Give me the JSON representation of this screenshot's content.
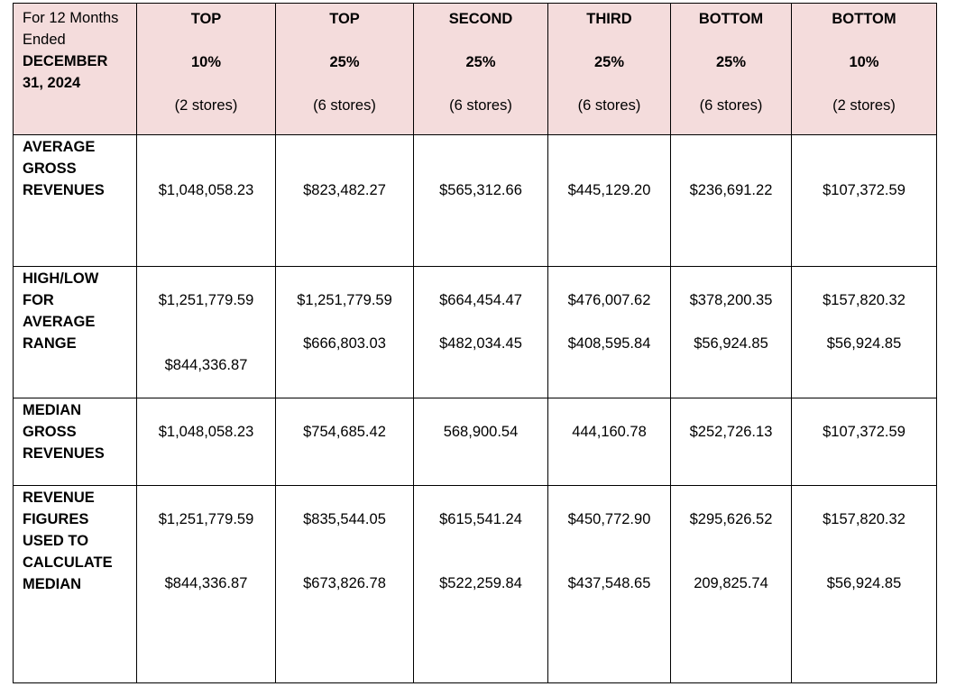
{
  "header": {
    "period_line1": "For 12 Months",
    "period_line2": "Ended",
    "period_line3": "DECEMBER",
    "period_line4": "31, 2024",
    "columns": [
      {
        "tier": "TOP",
        "pct": "10%",
        "stores": "(2 stores)"
      },
      {
        "tier": "TOP",
        "pct": "25%",
        "stores": "(6 stores)"
      },
      {
        "tier": "SECOND",
        "pct": "25%",
        "stores": "(6 stores)"
      },
      {
        "tier": "THIRD",
        "pct": "25%",
        "stores": "(6 stores)"
      },
      {
        "tier": "BOTTOM",
        "pct": "25%",
        "stores": "(6 stores)"
      },
      {
        "tier": "BOTTOM",
        "pct": "10%",
        "stores": "(2 stores)"
      }
    ]
  },
  "rows": {
    "avg": {
      "label": [
        "AVERAGE",
        "GROSS",
        "REVENUES"
      ],
      "values": [
        "$1,048,058.23",
        "$823,482.27",
        "$565,312.66",
        "$445,129.20",
        "$236,691.22",
        "$107,372.59"
      ]
    },
    "highlow": {
      "label": [
        "HIGH/LOW",
        "FOR",
        "AVERAGE",
        "RANGE"
      ],
      "high": [
        "$1,251,779.59",
        "$1,251,779.59",
        "$664,454.47",
        "$476,007.62",
        "$378,200.35",
        "$157,820.32"
      ],
      "low": [
        "$844,336.87",
        "$666,803.03",
        "$482,034.45",
        "$408,595.84",
        "$56,924.85",
        "$56,924.85"
      ]
    },
    "median": {
      "label": [
        "MEDIAN",
        "GROSS",
        "REVENUES"
      ],
      "values": [
        "$1,048,058.23",
        "$754,685.42",
        "568,900.54",
        "444,160.78",
        "$252,726.13",
        "$107,372.59"
      ]
    },
    "figures": {
      "label": [
        "REVENUE",
        "FIGURES",
        "USED TO",
        "CALCULATE",
        "MEDIAN"
      ],
      "first": [
        "$1,251,779.59",
        "$835,544.05",
        "$615,541.24",
        "$450,772.90",
        "$295,626.52",
        "$157,820.32"
      ],
      "second": [
        "$844,336.87",
        "$673,826.78",
        "$522,259.84",
        "$437,548.65",
        "209,825.74",
        "$56,924.85"
      ]
    }
  }
}
